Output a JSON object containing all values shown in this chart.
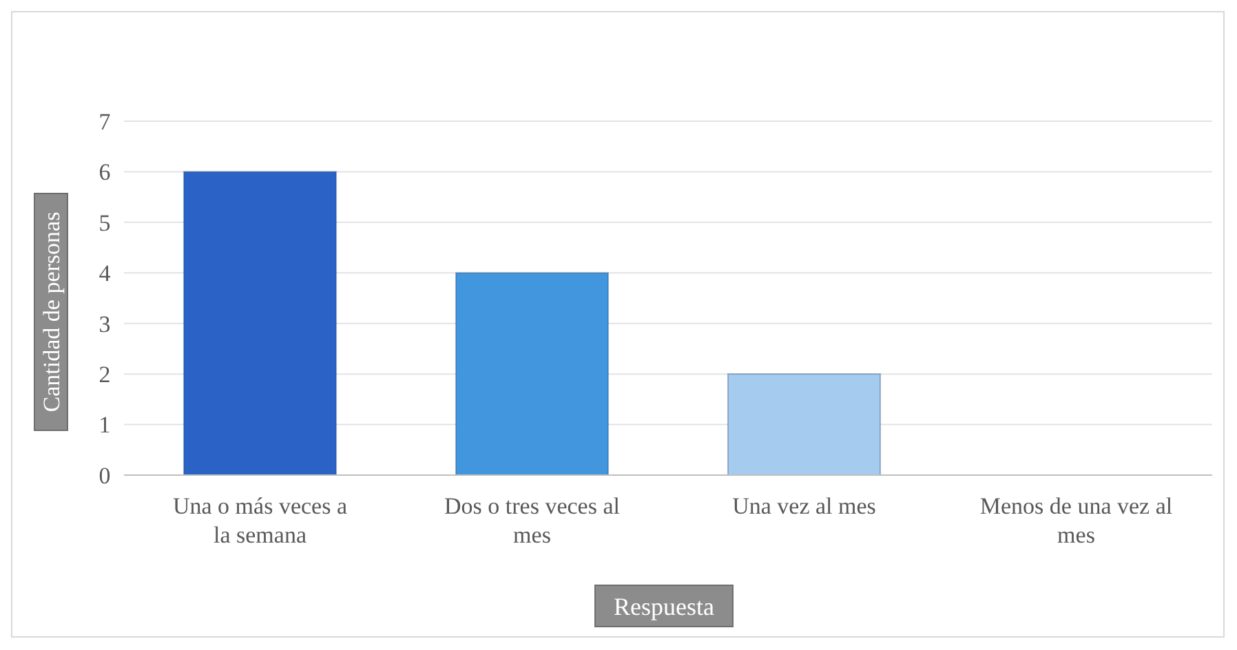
{
  "chart_data": {
    "type": "bar",
    "xlabel": "Respuesta",
    "ylabel": "Cantidad de personas",
    "categories": [
      "Una o más veces a la semana",
      "Dos o tres veces al mes",
      "Una vez al mes",
      "Menos de una vez al mes"
    ],
    "values": [
      6,
      4,
      2,
      0
    ],
    "colors": [
      "#2b62c6",
      "#4196dd",
      "#a5ccef",
      "#c5dcf3"
    ],
    "ylim": [
      0,
      7
    ],
    "yticks": [
      0,
      1,
      2,
      3,
      4,
      5,
      6,
      7
    ],
    "grid": "y"
  }
}
